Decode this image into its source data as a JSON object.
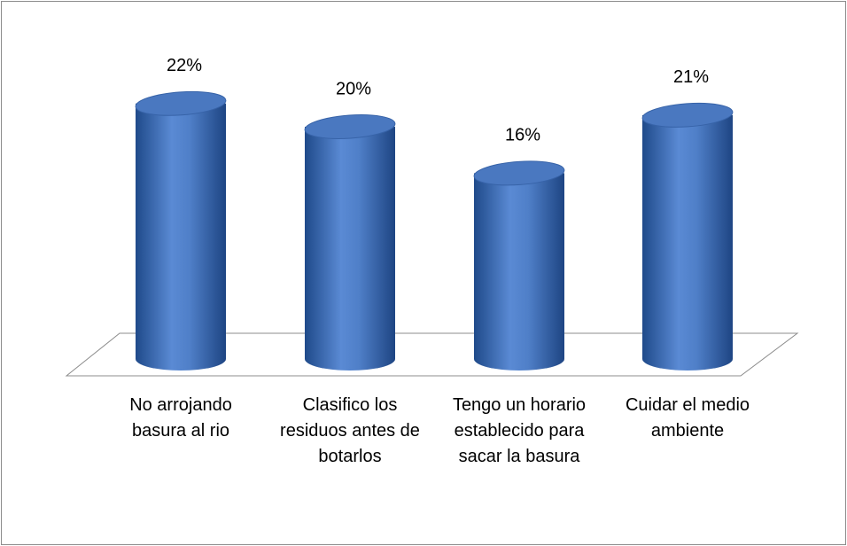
{
  "chart_data": {
    "type": "bar",
    "categories": [
      "No arrojando basura al rio",
      "Clasifico los residuos antes de botarlos",
      "Tengo un horario establecido para sacar la basura",
      "Cuidar el medio ambiente"
    ],
    "values": [
      22,
      20,
      16,
      21
    ],
    "value_labels": [
      "22%",
      "20%",
      "16%",
      "21%"
    ],
    "color": "#4a78c0"
  }
}
